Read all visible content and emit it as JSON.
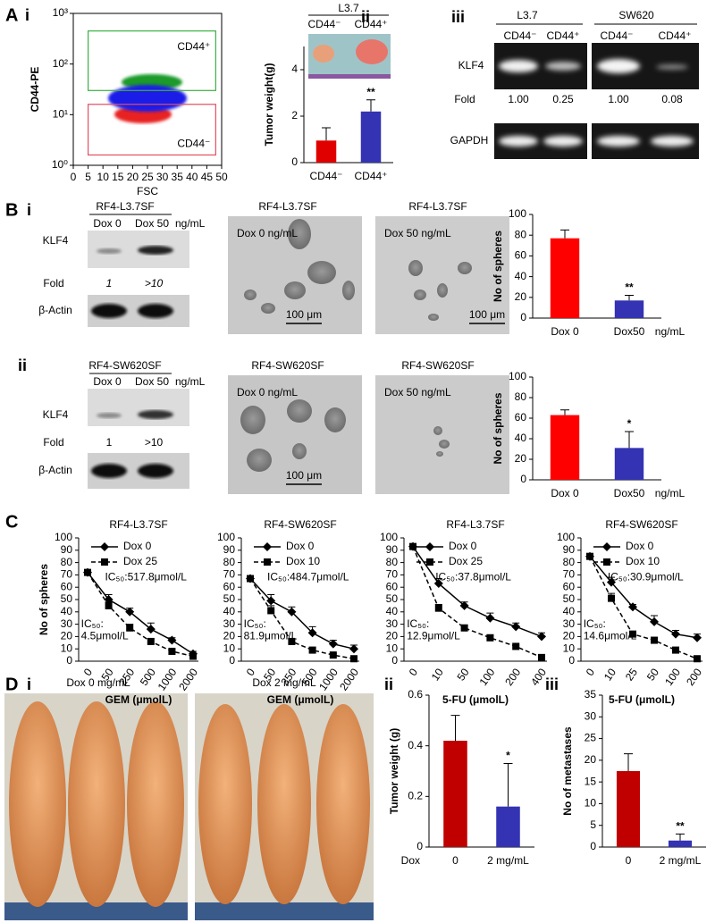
{
  "figure": {
    "panel_a": "A",
    "a_i": "i",
    "a_ii": "ii",
    "a_iii": "iii",
    "panel_b": "B",
    "b_i": "i",
    "b_ii": "ii",
    "panel_c": "C",
    "panel_d": "D",
    "d_i": "i",
    "d_ii": "ii",
    "d_iii": "iii",
    "a_ii_photo": {
      "title": "L3.7",
      "left": "CD44⁻",
      "right": "CD44⁺"
    },
    "a_iii_gel": {
      "group1": "L3.7",
      "group2": "SW620",
      "lanes": [
        "CD44⁻",
        "CD44⁺",
        "CD44⁻",
        "CD44⁺"
      ],
      "band": "KLF4",
      "fold_label": "Fold",
      "folds": [
        "1.00",
        "0.25",
        "1.00",
        "0.08"
      ],
      "control": "GAPDH"
    },
    "b_i_blot": {
      "title": "RF4-L3.7SF",
      "lanes": [
        "Dox 0",
        "Dox 50"
      ],
      "unit": "ng/mL",
      "band": "KLF4",
      "fold_label": "Fold",
      "folds": [
        "1",
        ">10"
      ],
      "control": "β-Actin"
    },
    "b_i_photos": [
      {
        "title": "RF4-L3.7SF",
        "label": "Dox 0 ng/mL",
        "scale": "100 μm"
      },
      {
        "title": "RF4-L3.7SF",
        "label": "Dox 50 ng/mL",
        "scale": "100 μm"
      }
    ],
    "b_ii_blot": {
      "title": "RF4-SW620SF",
      "lanes": [
        "Dox 0",
        "Dox 50"
      ],
      "unit": "ng/mL",
      "band": "KLF4",
      "fold_label": "Fold",
      "folds": [
        "1",
        ">10"
      ],
      "control": "β-Actin"
    },
    "b_ii_photos": [
      {
        "title": "RF4-SW620SF",
        "label": "Dox 0 ng/mL",
        "scale": "100 μm"
      },
      {
        "title": "RF4-SW620SF",
        "label": "Dox 50 ng/mL",
        "scale": "100 μm"
      }
    ],
    "d_i_photos": [
      "Dox 0 mg/mL",
      "Dox 2 mg/mL"
    ]
  },
  "chart_data": [
    {
      "type": "flow",
      "xlabel": "FSC",
      "ylabel": "CD44-PE",
      "xlim": [
        0,
        50
      ],
      "xticks": [
        0,
        5,
        10,
        15,
        20,
        25,
        30,
        35,
        40,
        45,
        50
      ],
      "log_y": true,
      "ylim": [
        1,
        1000
      ],
      "yticks": [
        {
          "value": 1,
          "label": "10⁰"
        },
        {
          "value": 10,
          "label": "10¹"
        },
        {
          "value": 100,
          "label": "10²"
        },
        {
          "value": 1000,
          "label": "10³"
        }
      ],
      "gates": [
        {
          "label": "CD44⁺",
          "x": [
            5,
            48
          ],
          "y": [
            30,
            450
          ],
          "color": "#3cb043"
        },
        {
          "label": "CD44⁻",
          "x": [
            5,
            48
          ],
          "y": [
            1.6,
            16
          ],
          "color": "#e05060"
        }
      ]
    },
    {
      "type": "bar",
      "ylabel": "Tumor weight(g)",
      "categories": [
        "CD44⁻",
        "CD44⁺"
      ],
      "values": [
        0.95,
        2.2
      ],
      "errors": [
        0.55,
        0.5
      ],
      "colors": [
        "#e00000",
        "#3333b3"
      ],
      "ylim": [
        0,
        5
      ],
      "yticks": [
        0,
        2,
        4
      ],
      "annotation": "**",
      "annotation_bar": 1
    },
    {
      "type": "bar",
      "ylabel": "No of spheres",
      "categories": [
        "Dox 0",
        "Dox50"
      ],
      "x_unit": "ng/mL",
      "values": [
        77,
        17
      ],
      "errors": [
        8,
        5
      ],
      "colors": [
        "#ff0000",
        "#3333b3"
      ],
      "ylim": [
        0,
        100
      ],
      "yticks": [
        0,
        20,
        40,
        60,
        80,
        100
      ],
      "annotation": "**",
      "annotation_bar": 1
    },
    {
      "type": "bar",
      "ylabel": "No of spheres",
      "categories": [
        "Dox 0",
        "Dox50"
      ],
      "x_unit": "ng/mL",
      "values": [
        63,
        31
      ],
      "errors": [
        5,
        16
      ],
      "colors": [
        "#ff0000",
        "#3333b3"
      ],
      "ylim": [
        0,
        100
      ],
      "yticks": [
        0,
        20,
        40,
        60,
        80,
        100
      ],
      "annotation": "*",
      "annotation_bar": 1
    },
    {
      "type": "line",
      "title": "RF4-L3.7SF",
      "ylabel": "No of spheres",
      "xlabel": "GEM (μmolL)",
      "categories": [
        "0",
        "50",
        "250",
        "500",
        "1000",
        "2000"
      ],
      "ylim": [
        0,
        100
      ],
      "yticks": [
        0,
        10,
        20,
        30,
        40,
        50,
        60,
        70,
        80,
        90,
        100
      ],
      "series": [
        {
          "name": "Dox 0",
          "color": "#000",
          "marker": "diamond",
          "dashed": false,
          "values": [
            72,
            50,
            40,
            26,
            17,
            6
          ],
          "errors": [
            2,
            4,
            3,
            5,
            2,
            2
          ]
        },
        {
          "name": "Dox 25",
          "color": "#000",
          "marker": "square",
          "dashed": true,
          "values": [
            72,
            45,
            27,
            16,
            8,
            4
          ],
          "errors": [
            2,
            3,
            3,
            2,
            1,
            1
          ]
        }
      ],
      "annotations": [
        "IC₅₀:517.8μmol/L",
        "IC₅₀:",
        "4.5μmol/L"
      ]
    },
    {
      "type": "line",
      "title": "RF4-SW620SF",
      "xlabel": "GEM (μmolL)",
      "categories": [
        "0",
        "50",
        "250",
        "500",
        "1000",
        "2000"
      ],
      "ylim": [
        0,
        100
      ],
      "yticks": [
        0,
        10,
        20,
        30,
        40,
        50,
        60,
        70,
        80,
        90,
        100
      ],
      "series": [
        {
          "name": "Dox 0",
          "color": "#000",
          "marker": "diamond",
          "dashed": false,
          "values": [
            67,
            49,
            40,
            23,
            14,
            10
          ],
          "errors": [
            2,
            5,
            4,
            5,
            3,
            3
          ]
        },
        {
          "name": "Dox 10",
          "color": "#000",
          "marker": "square",
          "dashed": true,
          "values": [
            67,
            41,
            16,
            9,
            5,
            2
          ],
          "errors": [
            2,
            4,
            2,
            2,
            1,
            1
          ]
        }
      ],
      "annotations": [
        "IC₅₀:484.7μmol/L",
        "IC₅₀:",
        "81.9μmol/L"
      ]
    },
    {
      "type": "line",
      "title": "RF4-L3.7SF",
      "xlabel": "5-FU (μmolL)",
      "categories": [
        "0",
        "10",
        "50",
        "100",
        "200",
        "400"
      ],
      "ylim": [
        0,
        100
      ],
      "yticks": [
        0,
        10,
        20,
        30,
        40,
        50,
        60,
        70,
        80,
        90,
        100
      ],
      "series": [
        {
          "name": "Dox 0",
          "color": "#000",
          "marker": "diamond",
          "dashed": false,
          "values": [
            93,
            63,
            45,
            35,
            28,
            20
          ],
          "errors": [
            2,
            4,
            3,
            4,
            3,
            3
          ]
        },
        {
          "name": "Dox 25",
          "color": "#000",
          "marker": "square",
          "dashed": true,
          "values": [
            93,
            43,
            27,
            19,
            12,
            3
          ],
          "errors": [
            2,
            3,
            2,
            2,
            1,
            1
          ]
        }
      ],
      "annotations": [
        "IC₅₀:37.8μmol/L",
        "IC₅₀:",
        "12.9μmol/L"
      ]
    },
    {
      "type": "line",
      "title": "RF4-SW620SF",
      "xlabel": "5-FU (μmolL)",
      "categories": [
        "0",
        "10",
        "25",
        "50",
        "100",
        "200"
      ],
      "ylim": [
        0,
        100
      ],
      "yticks": [
        0,
        10,
        20,
        30,
        40,
        50,
        60,
        70,
        80,
        90,
        100
      ],
      "series": [
        {
          "name": "Dox 0",
          "color": "#000",
          "marker": "diamond",
          "dashed": false,
          "values": [
            85,
            64,
            44,
            32,
            22,
            19
          ],
          "errors": [
            2,
            4,
            2,
            5,
            3,
            3
          ]
        },
        {
          "name": "Dox 10",
          "color": "#000",
          "marker": "square",
          "dashed": true,
          "values": [
            85,
            51,
            22,
            17,
            9,
            2
          ],
          "errors": [
            2,
            4,
            2,
            2,
            1,
            1
          ]
        }
      ],
      "annotations": [
        "IC₅₀:30.9μmol/L",
        "IC₅₀:",
        "14.6μmol/L"
      ]
    },
    {
      "type": "bar",
      "ylabel": "Tumor weight (g)",
      "x_prefix": "Dox",
      "categories": [
        "0",
        "2 mg/mL"
      ],
      "values": [
        0.42,
        0.16
      ],
      "errors": [
        0.1,
        0.17
      ],
      "colors": [
        "#c00000",
        "#3333b3"
      ],
      "ylim": [
        0,
        0.6
      ],
      "yticks": [
        0,
        0.2,
        0.4,
        0.6
      ],
      "annotation": "*",
      "annotation_bar": 1
    },
    {
      "type": "bar",
      "ylabel": "No of metastases",
      "categories": [
        "0",
        "2 mg/mL"
      ],
      "values": [
        17.5,
        1.5
      ],
      "errors": [
        4,
        1.5
      ],
      "colors": [
        "#c00000",
        "#3333b3"
      ],
      "ylim": [
        0,
        35
      ],
      "yticks": [
        0,
        5,
        10,
        15,
        20,
        25,
        30,
        35
      ],
      "annotation": "**",
      "annotation_bar": 1
    }
  ]
}
